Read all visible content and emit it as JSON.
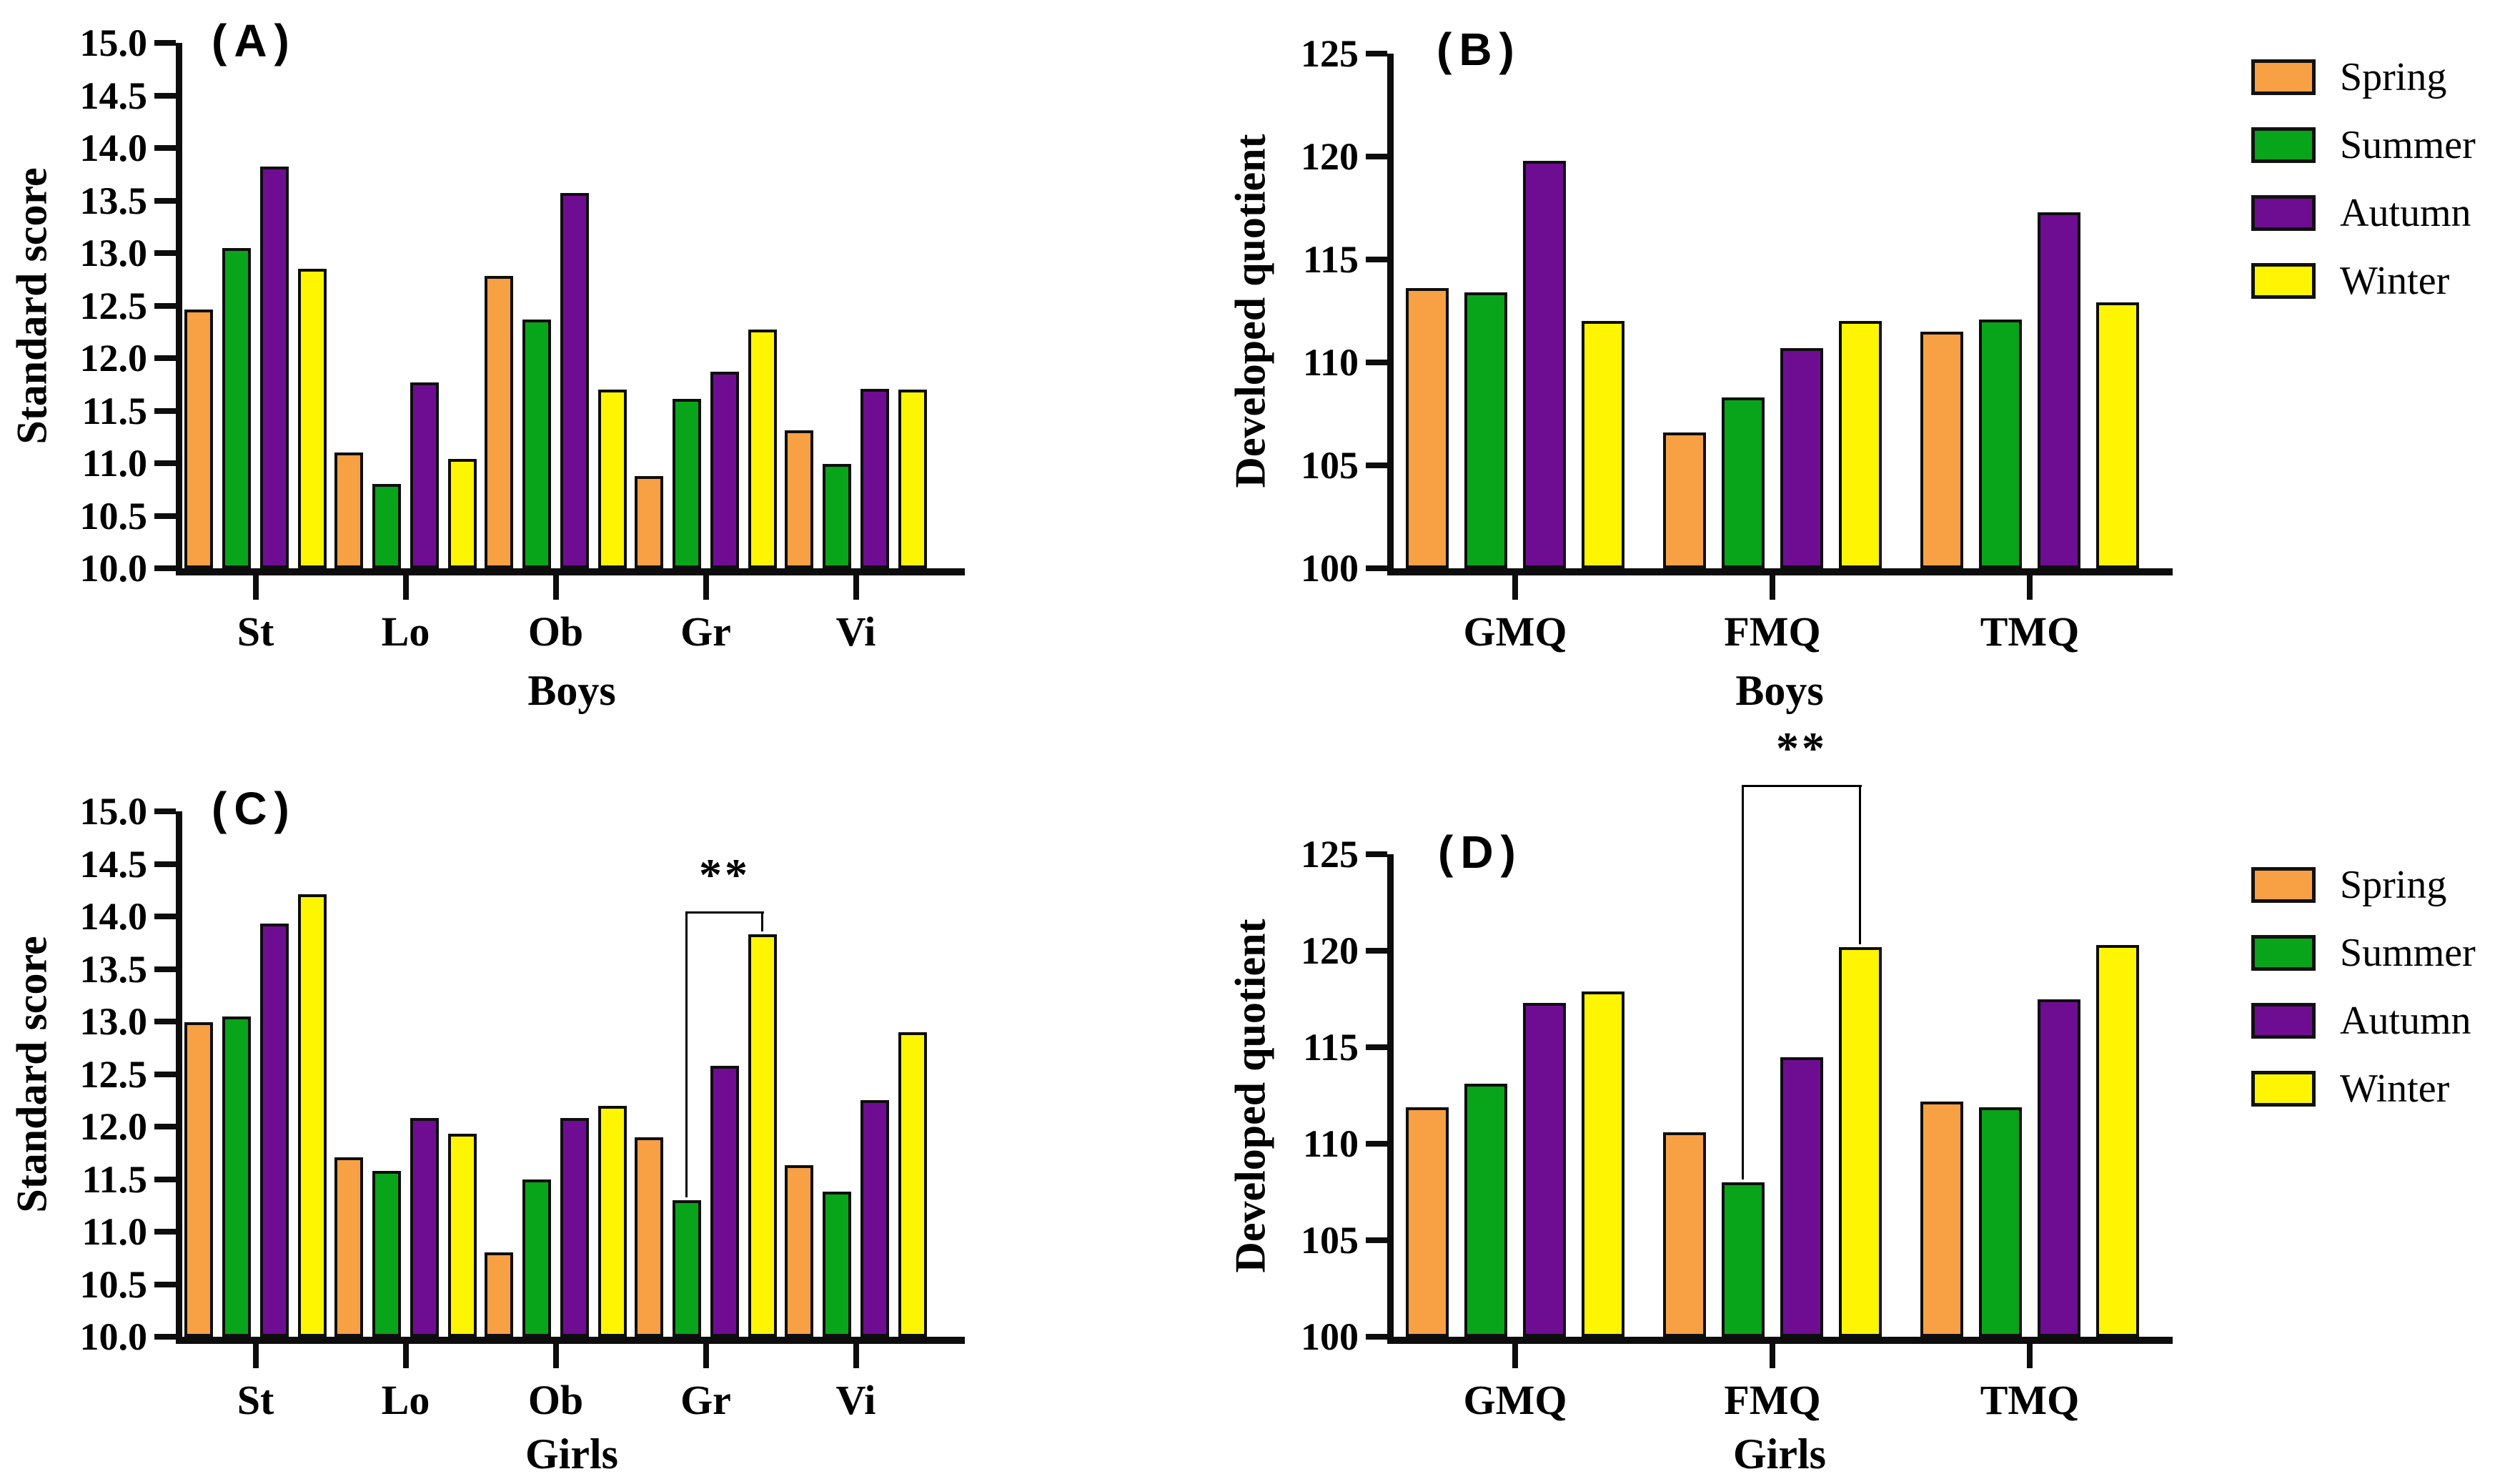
{
  "legend": {
    "items": [
      {
        "label": "Spring",
        "color": "#F8A044"
      },
      {
        "label": "Summer",
        "color": "#08A41A"
      },
      {
        "label": "Autumn",
        "color": "#6E0D92"
      },
      {
        "label": "Winter",
        "color": "#FEF502"
      }
    ]
  },
  "chart_data": [
    {
      "id": "A",
      "type": "bar",
      "letter": "(A)",
      "ylabel": "Standard score",
      "xlabel": "Boys",
      "ylim": [
        10,
        15
      ],
      "yticks": [
        "15.0",
        "14.5",
        "14.0",
        "13.5",
        "13.0",
        "12.5",
        "12.0",
        "11.5",
        "11.0",
        "10.5",
        "10.0"
      ],
      "grid": false,
      "categories": [
        "St",
        "Lo",
        "Ob",
        "Gr",
        "Vi"
      ],
      "series": [
        {
          "name": "Spring",
          "color": "#F8A044",
          "values": [
            12.46,
            11.1,
            12.78,
            10.88,
            11.31
          ]
        },
        {
          "name": "Summer",
          "color": "#08A41A",
          "values": [
            13.05,
            10.8,
            12.37,
            11.61,
            10.99
          ]
        },
        {
          "name": "Autumn",
          "color": "#6E0D92",
          "values": [
            13.82,
            11.77,
            13.57,
            11.87,
            11.71
          ]
        },
        {
          "name": "Winter",
          "color": "#FEF502",
          "values": [
            12.85,
            11.04,
            11.7,
            12.27,
            11.7
          ]
        }
      ]
    },
    {
      "id": "B",
      "type": "bar",
      "letter": "(B)",
      "ylabel": "Developed quotient",
      "xlabel": "Boys",
      "ylim": [
        100,
        125
      ],
      "yticks": [
        "125",
        "120",
        "115",
        "110",
        "105",
        "100"
      ],
      "grid": false,
      "categories": [
        "GMQ",
        "FMQ",
        "TMQ"
      ],
      "series": [
        {
          "name": "Spring",
          "color": "#F8A044",
          "values": [
            113.6,
            106.6,
            111.5
          ]
        },
        {
          "name": "Summer",
          "color": "#08A41A",
          "values": [
            113.4,
            108.3,
            112.1
          ]
        },
        {
          "name": "Autumn",
          "color": "#6E0D92",
          "values": [
            119.8,
            110.7,
            117.3
          ]
        },
        {
          "name": "Winter",
          "color": "#FEF502",
          "values": [
            112.0,
            112.0,
            112.9
          ]
        }
      ]
    },
    {
      "id": "C",
      "type": "bar",
      "letter": "(C)",
      "ylabel": "Standard score",
      "xlabel": "Girls",
      "ylim": [
        10,
        15
      ],
      "yticks": [
        "15.0",
        "14.5",
        "14.0",
        "13.5",
        "13.0",
        "12.5",
        "12.0",
        "11.5",
        "11.0",
        "10.5",
        "10.0"
      ],
      "grid": false,
      "categories": [
        "St",
        "Lo",
        "Ob",
        "Gr",
        "Vi"
      ],
      "series": [
        {
          "name": "Spring",
          "color": "#F8A044",
          "values": [
            12.99,
            11.71,
            10.8,
            11.9,
            11.63
          ]
        },
        {
          "name": "Summer",
          "color": "#08A41A",
          "values": [
            13.05,
            11.58,
            11.5,
            11.3,
            11.38
          ]
        },
        {
          "name": "Autumn",
          "color": "#6E0D92",
          "values": [
            13.93,
            12.08,
            12.08,
            12.58,
            12.25
          ]
        },
        {
          "name": "Winter",
          "color": "#FEF502",
          "values": [
            14.21,
            11.93,
            12.2,
            13.83,
            12.9
          ]
        }
      ],
      "significance": {
        "category": "Gr",
        "from": "Summer",
        "to": "Winter",
        "top": 14.05,
        "label": "**"
      }
    },
    {
      "id": "D",
      "type": "bar",
      "letter": "(D)",
      "ylabel": "Developed quotient",
      "xlabel": "Girls",
      "ylim": [
        100,
        125
      ],
      "yticks": [
        "125",
        "120",
        "115",
        "110",
        "105",
        "100"
      ],
      "grid": false,
      "categories": [
        "GMQ",
        "FMQ",
        "TMQ"
      ],
      "series": [
        {
          "name": "Spring",
          "color": "#F8A044",
          "values": [
            111.9,
            110.6,
            112.2
          ]
        },
        {
          "name": "Summer",
          "color": "#08A41A",
          "values": [
            113.1,
            108.0,
            111.9
          ]
        },
        {
          "name": "Autumn",
          "color": "#6E0D92",
          "values": [
            117.3,
            114.5,
            117.5
          ]
        },
        {
          "name": "Winter",
          "color": "#FEF502",
          "values": [
            117.9,
            120.2,
            120.3
          ]
        }
      ],
      "significance": {
        "category": "FMQ",
        "from": "Summer",
        "to": "Winter",
        "top": 128.6,
        "label": "**"
      }
    }
  ]
}
